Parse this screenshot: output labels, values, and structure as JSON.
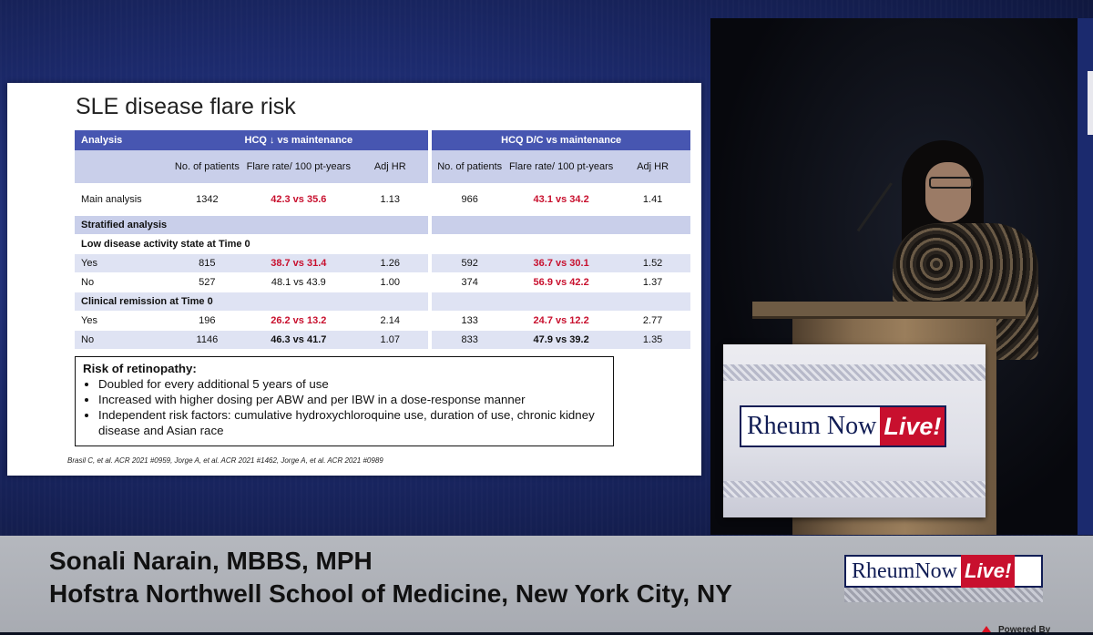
{
  "slide": {
    "title": "SLE disease flare risk",
    "table": {
      "header": {
        "analysis": "Analysis",
        "group1": "HCQ ↓ vs maintenance",
        "group2": "HCQ D/C vs maintenance"
      },
      "subheader": {
        "n_patients": "No. of patients",
        "flare_rate": "Flare rate/ 100 pt-years",
        "adj_hr": "Adj HR"
      },
      "rows": [
        {
          "label": "Main analysis",
          "n1": "1342",
          "f1": "42.3 vs 35.6",
          "hr1": "1.13",
          "n2": "966",
          "f2": "43.1 vs 34.2",
          "hr2": "1.41"
        },
        {
          "section": "Stratified analysis"
        },
        {
          "section": "Low disease activity state at Time 0"
        },
        {
          "label": "Yes",
          "n1": "815",
          "f1": "38.7 vs 31.4",
          "hr1": "1.26",
          "n2": "592",
          "f2": "36.7 vs 30.1",
          "hr2": "1.52"
        },
        {
          "label": "No",
          "n1": "527",
          "f1": "48.1 vs 43.9",
          "hr1": "1.00",
          "n2": "374",
          "f2": "56.9 vs 42.2",
          "hr2": "1.37"
        },
        {
          "section": "Clinical remission at Time 0"
        },
        {
          "label": "Yes",
          "n1": "196",
          "f1": "26.2 vs 13.2",
          "hr1": "2.14",
          "n2": "133",
          "f2": "24.7 vs 12.2",
          "hr2": "2.77"
        },
        {
          "label": "No",
          "n1": "1146",
          "f1": "46.3 vs 41.7",
          "hr1": "1.07",
          "n2": "833",
          "f2": "47.9 vs 39.2",
          "hr2": "1.35"
        }
      ]
    },
    "retinopathy": {
      "heading": "Risk of retinopathy:",
      "bullets": [
        "Doubled for every additional 5 years of use",
        "Increased with higher dosing per ABW and per IBW in a dose-response manner",
        "Independent risk factors: cumulative hydroxychloroquine use, duration of use, chronic kidney disease and Asian race"
      ]
    },
    "citation": "Brasil C, et al. ACR 2021 #0959, Jorge A, et al. ACR 2021 #1462, Jorge A, et al. ACR 2021 #0989"
  },
  "podium_logo": {
    "name": "Rheum Now",
    "live": "Live!"
  },
  "lower_third": {
    "name": "Sonali Narain, MBBS, MPH",
    "affiliation": "Hofstra Northwell School of Medicine, New York City, NY",
    "logo_name": "RheumNow",
    "logo_live": "Live!",
    "powered": "Powered By"
  },
  "colors": {
    "table_header": "#4756b1",
    "highlight_red": "#c8102e",
    "brand_navy": "#111d55"
  }
}
